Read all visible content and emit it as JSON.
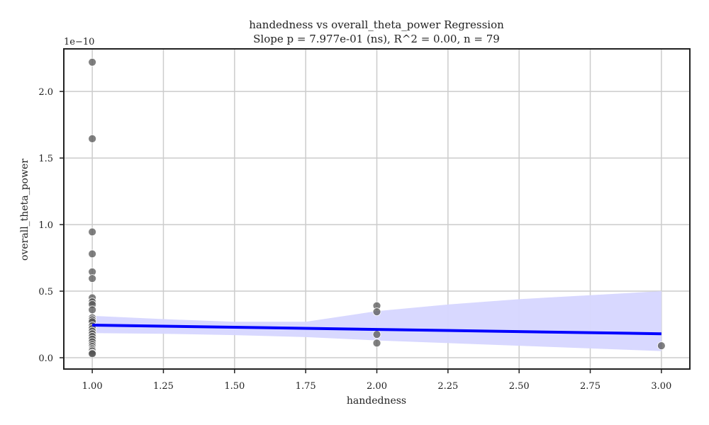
{
  "chart_data": {
    "type": "scatter",
    "title": "handedness vs overall_theta_power Regression",
    "subtitle": "Slope p = 7.977e-01 (ns), R^2 = 0.00, n = 79",
    "xlabel": "handedness",
    "ylabel": "overall_theta_power",
    "y_offset_label": "1e−10",
    "xlim": [
      0.9,
      3.1
    ],
    "ylim": [
      -0.085,
      2.32
    ],
    "x_ticks": [
      1.0,
      1.25,
      1.5,
      1.75,
      2.0,
      2.25,
      2.5,
      2.75,
      3.0
    ],
    "x_tick_labels": [
      "1.00",
      "1.25",
      "1.50",
      "1.75",
      "2.00",
      "2.25",
      "2.50",
      "2.75",
      "3.00"
    ],
    "y_ticks": [
      0.0,
      0.5,
      1.0,
      1.5,
      2.0
    ],
    "y_tick_labels": [
      "0.0",
      "0.5",
      "1.0",
      "1.5",
      "2.0"
    ],
    "grid": true,
    "colors": {
      "points": "#555555",
      "regression_line": "#0000ff",
      "confidence_band": "#d6d6ff",
      "grid": "#cccccc"
    },
    "points": [
      {
        "x": 1.0,
        "y": 2.22
      },
      {
        "x": 1.0,
        "y": 1.645
      },
      {
        "x": 1.0,
        "y": 0.945
      },
      {
        "x": 1.0,
        "y": 0.78
      },
      {
        "x": 1.0,
        "y": 0.645
      },
      {
        "x": 1.0,
        "y": 0.595
      },
      {
        "x": 1.0,
        "y": 0.45
      },
      {
        "x": 1.0,
        "y": 0.42
      },
      {
        "x": 1.0,
        "y": 0.4
      },
      {
        "x": 1.0,
        "y": 0.36
      },
      {
        "x": 1.0,
        "y": 0.3
      },
      {
        "x": 1.0,
        "y": 0.285
      },
      {
        "x": 1.0,
        "y": 0.27
      },
      {
        "x": 1.0,
        "y": 0.24
      },
      {
        "x": 1.0,
        "y": 0.22
      },
      {
        "x": 1.0,
        "y": 0.2
      },
      {
        "x": 1.0,
        "y": 0.18
      },
      {
        "x": 1.0,
        "y": 0.16
      },
      {
        "x": 1.0,
        "y": 0.14
      },
      {
        "x": 1.0,
        "y": 0.12
      },
      {
        "x": 1.0,
        "y": 0.1
      },
      {
        "x": 1.0,
        "y": 0.085
      },
      {
        "x": 1.0,
        "y": 0.07
      },
      {
        "x": 1.0,
        "y": 0.06
      },
      {
        "x": 1.0,
        "y": 0.05
      },
      {
        "x": 1.0,
        "y": 0.035
      },
      {
        "x": 1.0,
        "y": 0.03
      },
      {
        "x": 2.0,
        "y": 0.39
      },
      {
        "x": 2.0,
        "y": 0.345
      },
      {
        "x": 2.0,
        "y": 0.175
      },
      {
        "x": 2.0,
        "y": 0.11
      },
      {
        "x": 3.0,
        "y": 0.09
      }
    ],
    "regression_line": {
      "x": [
        1.0,
        3.0
      ],
      "y": [
        0.245,
        0.18
      ]
    },
    "confidence_band": {
      "x": [
        1.0,
        1.25,
        1.5,
        1.75,
        2.0,
        2.25,
        2.5,
        2.75,
        3.0
      ],
      "lower": [
        0.185,
        0.18,
        0.17,
        0.155,
        0.13,
        0.11,
        0.09,
        0.07,
        0.05
      ],
      "upper": [
        0.315,
        0.29,
        0.27,
        0.27,
        0.35,
        0.4,
        0.44,
        0.47,
        0.5
      ]
    }
  }
}
